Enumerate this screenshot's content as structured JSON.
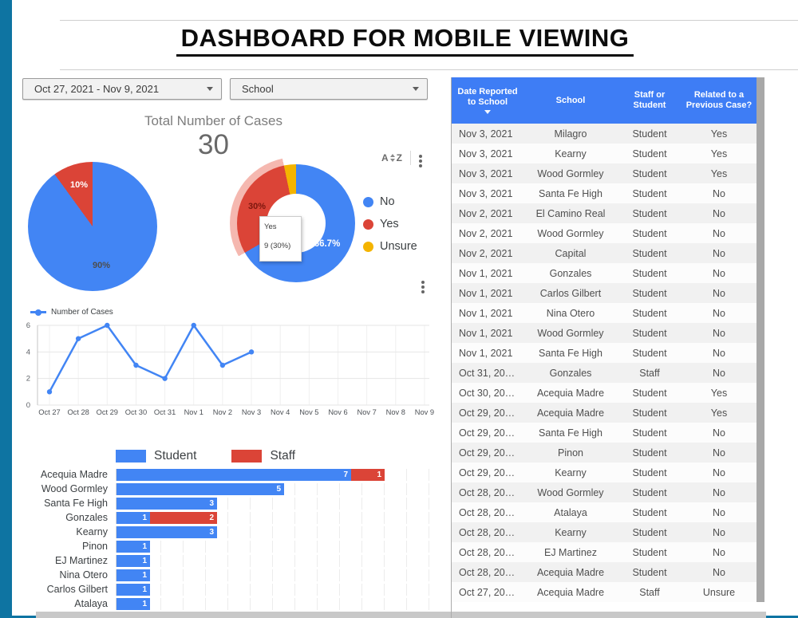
{
  "page": {
    "title": "DASHBOARD FOR MOBILE VIEWING"
  },
  "filters": {
    "date_range_label": "Oct 27, 2021 - Nov 9, 2021",
    "school_label": "School"
  },
  "icons": {
    "dropdown_caret": "caret-down",
    "sort": "az-sort",
    "more": "kebab-vertical",
    "header_sort": "triangle-down"
  },
  "toolbar": {
    "sort_a": "A",
    "sort_z": "Z"
  },
  "scorecard": {
    "label": "Total Number of Cases",
    "value": "30"
  },
  "colors": {
    "blue": "#4285F4",
    "red": "#DB4437",
    "yellow": "#F4B400",
    "halo_pink": "#F5B8B0",
    "header_blue": "#3E7DF5",
    "sidebar_teal": "#0E74A2"
  },
  "chart_data": [
    {
      "id": "staff-student-pie",
      "type": "pie",
      "labels": [
        "Student",
        "Staff"
      ],
      "values": [
        90,
        10
      ],
      "value_labels": [
        "90%",
        "10%"
      ],
      "colors": [
        "#4285F4",
        "#DB4437"
      ],
      "legend_position": "right"
    },
    {
      "id": "related-to-previous-case-donut",
      "type": "pie",
      "hole": 0.5,
      "labels": [
        "No",
        "Yes",
        "Unsure"
      ],
      "values": [
        66.7,
        30,
        3.3
      ],
      "value_labels": [
        "66.7%",
        "30%",
        ""
      ],
      "colors": [
        "#4285F4",
        "#DB4437",
        "#F4B400"
      ],
      "highlighted_slice": "Yes",
      "tooltip": {
        "title": "Yes",
        "value": "9 (30%)"
      },
      "legend_position": "right"
    },
    {
      "id": "cases-by-day-line",
      "type": "line",
      "series_name": "Number of Cases",
      "x": [
        "Oct 27",
        "Oct 28",
        "Oct 29",
        "Oct 30",
        "Oct 31",
        "Nov 1",
        "Nov 2",
        "Nov 3",
        "Nov 4",
        "Nov 5",
        "Nov 6",
        "Nov 7",
        "Nov 8",
        "Nov 9"
      ],
      "values": [
        1,
        5,
        6,
        3,
        2,
        6,
        3,
        4,
        null,
        null,
        null,
        null,
        null,
        null
      ],
      "ylim": [
        0,
        6
      ],
      "yticks": [
        0,
        2,
        4,
        6
      ],
      "color": "#4285F4",
      "grid": true,
      "legend_position": "top-left"
    },
    {
      "id": "cases-by-school-bar",
      "type": "bar",
      "orientation": "horizontal",
      "stacked": true,
      "categories": [
        "Acequia Madre",
        "Wood Gormley",
        "Santa Fe High",
        "Gonzales",
        "Kearny",
        "Pinon",
        "EJ Martinez",
        "Nina Otero",
        "Carlos Gilbert",
        "Atalaya"
      ],
      "series": [
        {
          "name": "Student",
          "color": "#4285F4",
          "values": [
            7,
            5,
            3,
            1,
            3,
            1,
            1,
            1,
            1,
            1
          ]
        },
        {
          "name": "Staff",
          "color": "#DB4437",
          "values": [
            1,
            0,
            0,
            2,
            0,
            0,
            0,
            0,
            0,
            0
          ]
        }
      ],
      "xlim": [
        0,
        9.4
      ],
      "legend_position": "top"
    }
  ],
  "table": {
    "columns": [
      "Date Reported to School",
      "School",
      "Staff or Student",
      "Related to a Previous Case?"
    ],
    "sort_column": 0,
    "rows": [
      [
        "Nov 3, 2021",
        "Milagro",
        "Student",
        "Yes"
      ],
      [
        "Nov 3, 2021",
        "Kearny",
        "Student",
        "Yes"
      ],
      [
        "Nov 3, 2021",
        "Wood Gormley",
        "Student",
        "Yes"
      ],
      [
        "Nov 3, 2021",
        "Santa Fe High",
        "Student",
        "No"
      ],
      [
        "Nov 2, 2021",
        "El Camino Real",
        "Student",
        "No"
      ],
      [
        "Nov 2, 2021",
        "Wood Gormley",
        "Student",
        "No"
      ],
      [
        "Nov 2, 2021",
        "Capital",
        "Student",
        "No"
      ],
      [
        "Nov 1, 2021",
        "Gonzales",
        "Student",
        "No"
      ],
      [
        "Nov 1, 2021",
        "Carlos Gilbert",
        "Student",
        "No"
      ],
      [
        "Nov 1, 2021",
        "Nina Otero",
        "Student",
        "No"
      ],
      [
        "Nov 1, 2021",
        "Wood Gormley",
        "Student",
        "No"
      ],
      [
        "Nov 1, 2021",
        "Santa Fe High",
        "Student",
        "No"
      ],
      [
        "Oct 31, 20…",
        "Gonzales",
        "Staff",
        "No"
      ],
      [
        "Oct 30, 20…",
        "Acequia Madre",
        "Student",
        "Yes"
      ],
      [
        "Oct 29, 20…",
        "Acequia Madre",
        "Student",
        "Yes"
      ],
      [
        "Oct 29, 20…",
        "Santa Fe High",
        "Student",
        "No"
      ],
      [
        "Oct 29, 20…",
        "Pinon",
        "Student",
        "No"
      ],
      [
        "Oct 29, 20…",
        "Kearny",
        "Student",
        "No"
      ],
      [
        "Oct 28, 20…",
        "Wood Gormley",
        "Student",
        "No"
      ],
      [
        "Oct 28, 20…",
        "Atalaya",
        "Student",
        "No"
      ],
      [
        "Oct 28, 20…",
        "Kearny",
        "Student",
        "No"
      ],
      [
        "Oct 28, 20…",
        "EJ Martinez",
        "Student",
        "No"
      ],
      [
        "Oct 28, 20…",
        "Acequia Madre",
        "Student",
        "No"
      ],
      [
        "Oct 27, 20…",
        "Acequia Madre",
        "Staff",
        "Unsure"
      ]
    ]
  }
}
